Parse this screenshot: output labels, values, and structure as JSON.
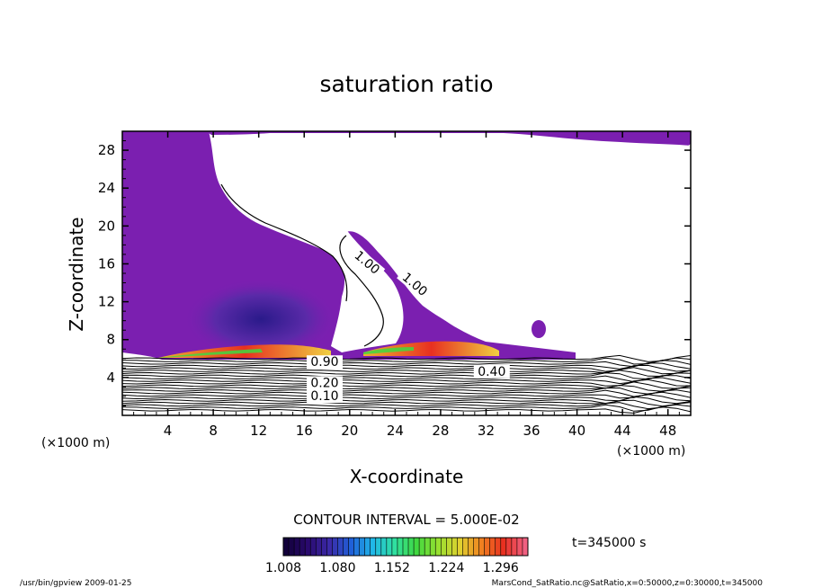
{
  "chart_data": {
    "type": "heatmap",
    "title": "saturation ratio",
    "xlabel": "X-coordinate",
    "ylabel": "Z-coordinate",
    "x_unit_label": "(×1000 m)",
    "y_unit_label": "(×1000 m)",
    "xlim": [
      0,
      50
    ],
    "ylim": [
      0,
      30
    ],
    "x_ticks": [
      "4",
      "8",
      "12",
      "16",
      "20",
      "24",
      "28",
      "32",
      "36",
      "40",
      "44",
      "48"
    ],
    "y_ticks": [
      "4",
      "8",
      "12",
      "16",
      "20",
      "24",
      "28"
    ],
    "contour_interval_text": "CONTOUR INTERVAL = 5.000E-02",
    "contour_labels": [
      {
        "text": "1.00",
        "x": 21.3,
        "z": 15.8
      },
      {
        "text": "1.00",
        "x": 25.5,
        "z": 13.5
      },
      {
        "text": "0.90",
        "x": 17.8,
        "z": 5.2
      },
      {
        "text": "0.40",
        "x": 32.5,
        "z": 4.2
      },
      {
        "text": "0.20",
        "x": 17.8,
        "z": 3.0
      },
      {
        "text": "0.10",
        "x": 17.8,
        "z": 1.6
      }
    ],
    "colorbar": {
      "ticks": [
        "1.008",
        "1.080",
        "1.152",
        "1.224",
        "1.296"
      ],
      "min": 1.008,
      "max": 1.332,
      "colors": [
        "#12003a",
        "#2a0a6e",
        "#3b2aa8",
        "#2060d8",
        "#20b8e8",
        "#30e0a0",
        "#40d840",
        "#98e030",
        "#e0d030",
        "#f08020",
        "#e83020",
        "#f06080"
      ]
    },
    "time_label": "t=345000 s",
    "colors": {
      "supersaturated_fill": "#7b1fb0",
      "core_fill": "#4a2aa8",
      "layer_high": "#e83020",
      "layer_mid": "#40d840"
    }
  },
  "footer": {
    "left": "/usr/bin/gpview   2009-01-25",
    "right": "MarsCond_SatRatio.nc@SatRatio,x=0:50000,z=0:30000,t=345000"
  }
}
